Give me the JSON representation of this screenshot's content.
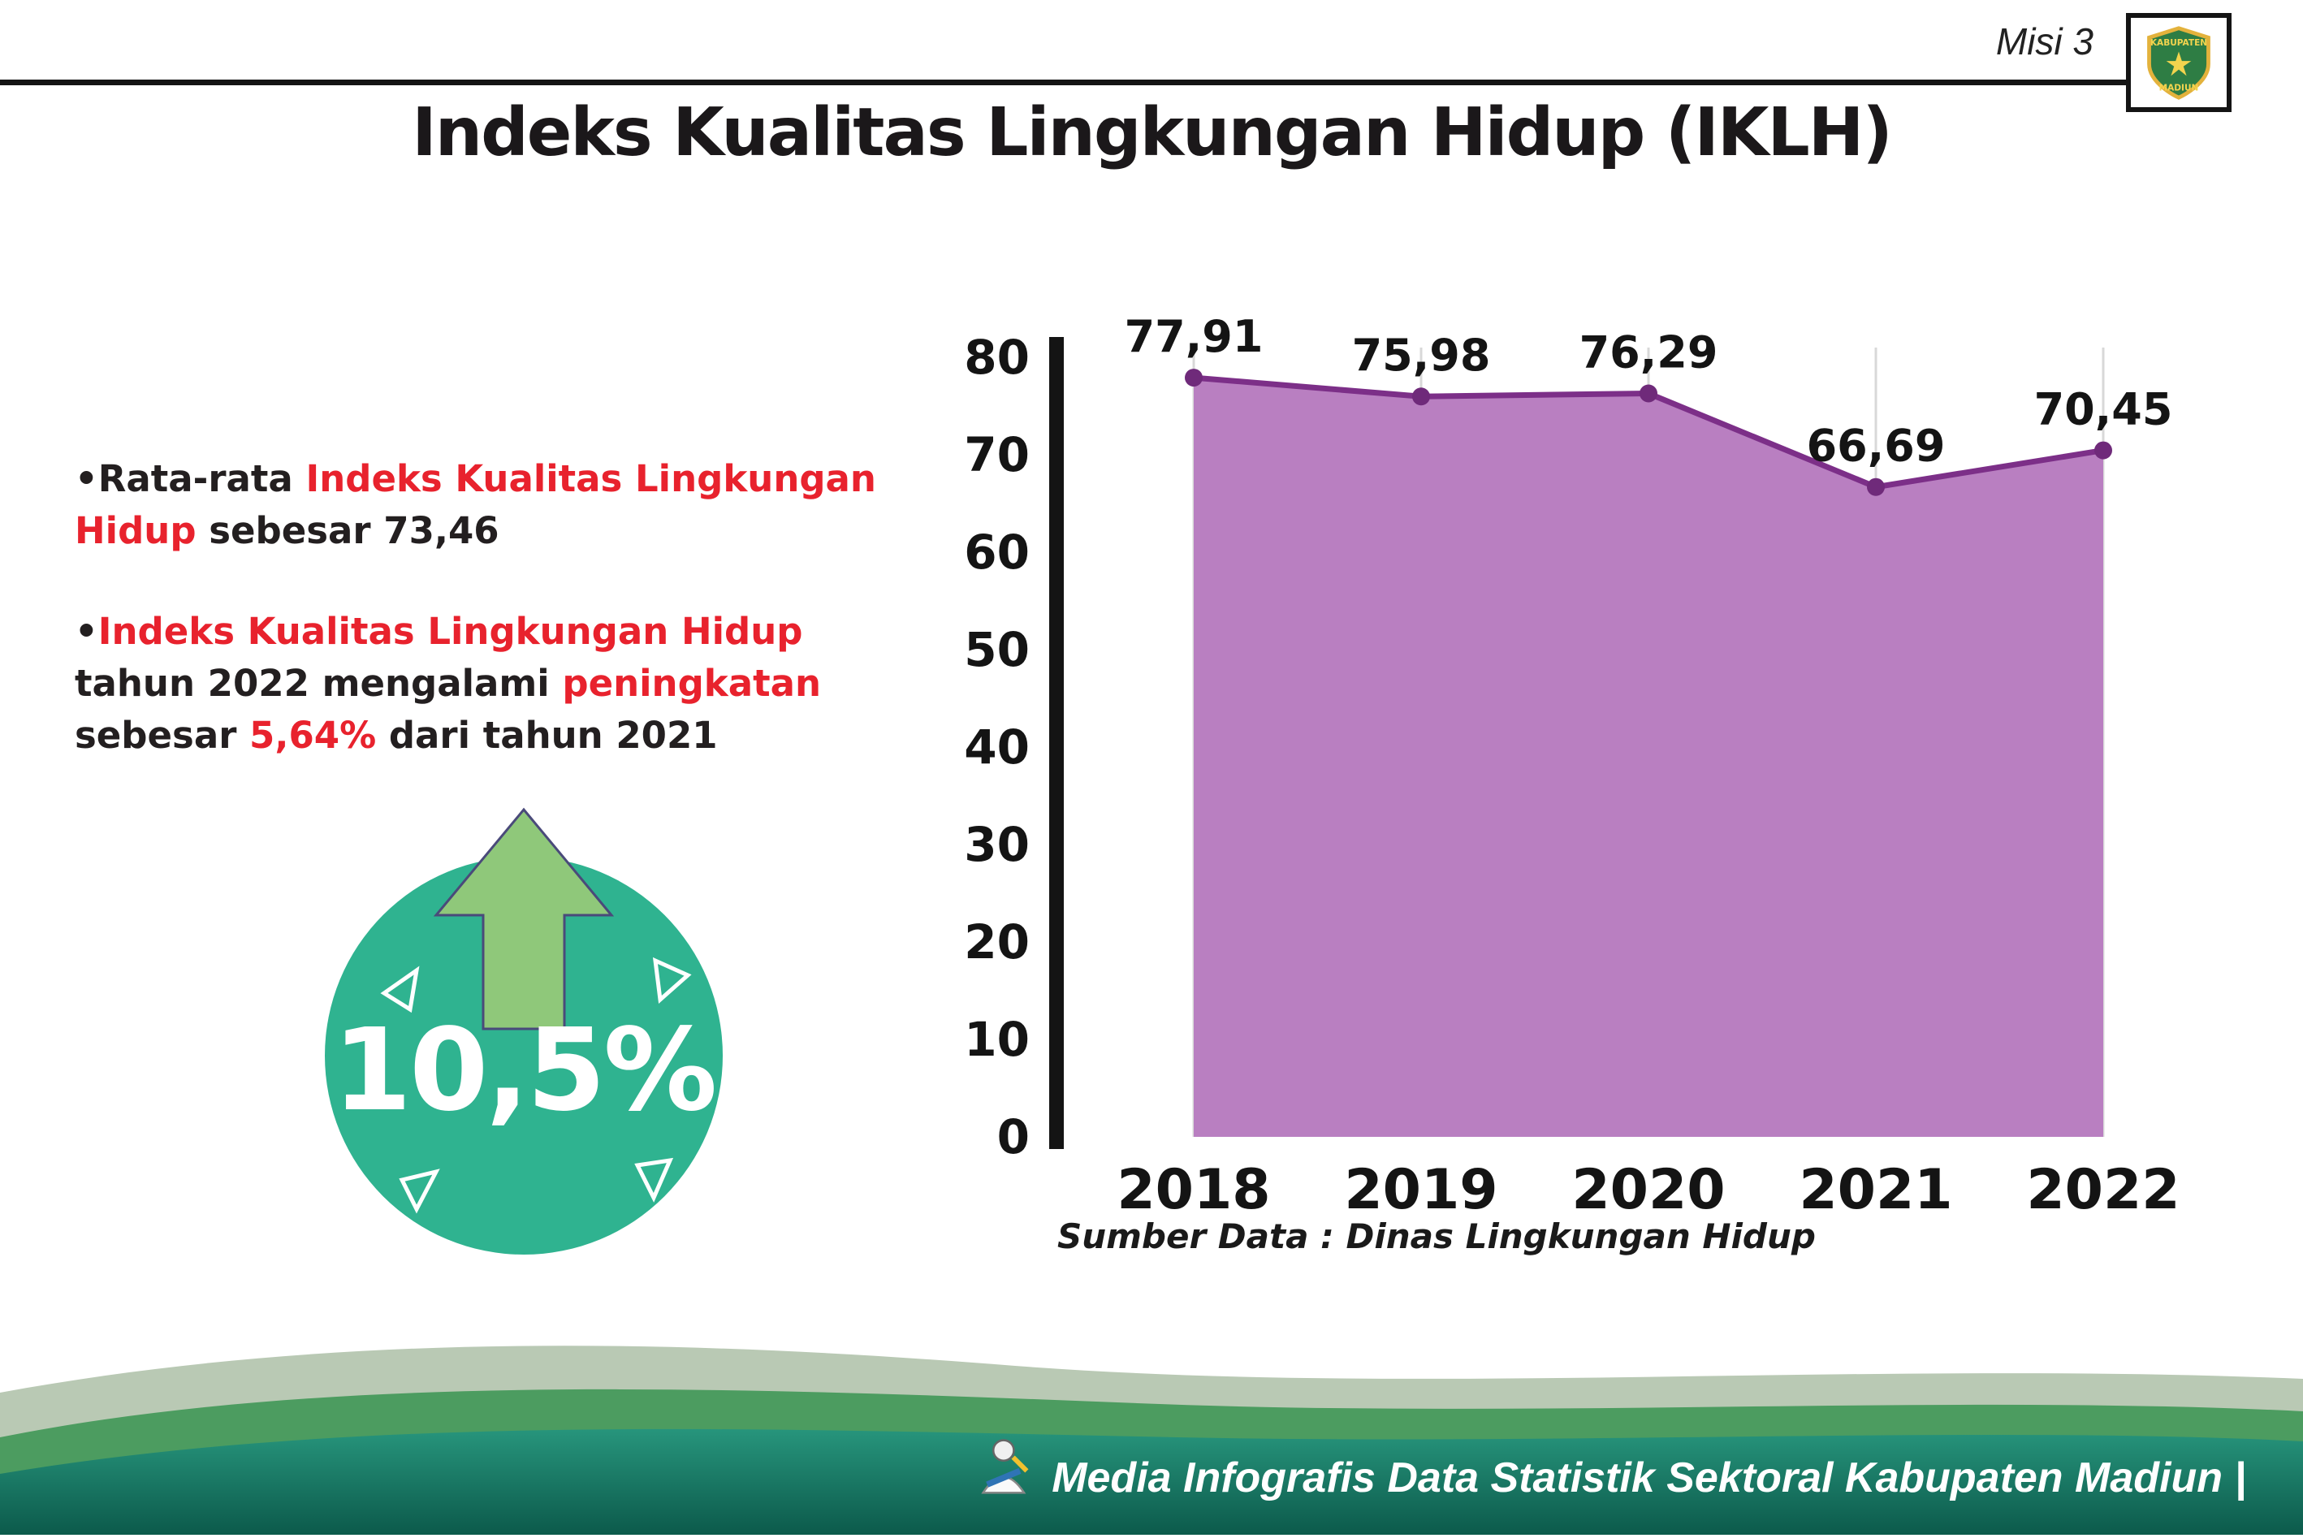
{
  "header": {
    "misi_label": "Misi 3",
    "title": "Indeks Kualitas Lingkungan Hidup (IKLH)",
    "logo": {
      "top_text": "KABUPATEN",
      "bottom_text": "MADIUN"
    }
  },
  "bullets": {
    "marker": "•",
    "b1": {
      "s1": "Rata-rata ",
      "s2": "Indeks Kualitas Lingkungan Hidup",
      "s3": " sebesar 73,46"
    },
    "b2": {
      "s1": "Indeks Kualitas Lingkungan Hidup",
      "s2": " tahun 2022 mengalami ",
      "s3": "peningkatan",
      "s4": " sebesar ",
      "s5": "5,64%",
      "s6": " dari tahun 2021"
    }
  },
  "badge": {
    "value": "10,5%"
  },
  "chart_data": {
    "type": "area",
    "categories": [
      "2018",
      "2019",
      "2020",
      "2021",
      "2022"
    ],
    "values": [
      77.91,
      75.98,
      76.29,
      66.69,
      70.45
    ],
    "point_labels": [
      "77,91",
      "75,98",
      "76,29",
      "66,69",
      "70,45"
    ],
    "title": "",
    "xlabel": "",
    "ylabel": "",
    "ylim": [
      0,
      80
    ],
    "yticks": [
      0,
      10,
      20,
      30,
      40,
      50,
      60,
      70,
      80
    ],
    "grid": "vertical",
    "legend": "none",
    "source": "Sumber Data : Dinas Lingkungan Hidup",
    "colors": {
      "area_fill": "#b97fc1",
      "line": "#7c2f88",
      "point": "#6f2a7a",
      "grid": "#d8d8d8",
      "axis": "#141414"
    }
  },
  "footer": {
    "credit": "Media Infografis Data Statistik Sektoral Kabupaten Madiun |"
  },
  "theme": {
    "accent_red": "#e8222d",
    "badge_teal": "#2fb390",
    "arrow_green": "#8fc87a",
    "footer_sage": "#b9c9b4",
    "footer_green": "#4c9c60",
    "footer_teal_dark": "#0c5a4b"
  }
}
